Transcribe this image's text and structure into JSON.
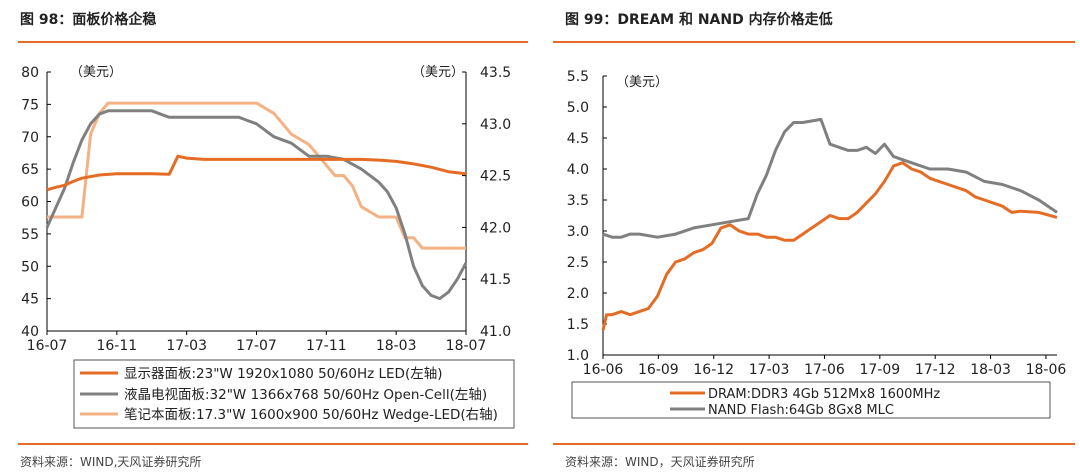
{
  "chart_data": [
    {
      "type": "line",
      "title": "图 98：面板价格企稳",
      "source": "资料来源：WIND,天风证券研究所",
      "y_left_label": "（美元）",
      "y_right_label": "（美元）",
      "ylim_left": [
        40,
        80
      ],
      "ylim_right": [
        41.0,
        43.5
      ],
      "yticks_left": [
        "80",
        "75",
        "70",
        "65",
        "60",
        "55",
        "50",
        "45",
        "40"
      ],
      "yticks_right": [
        "43.5",
        "43.0",
        "42.5",
        "42.0",
        "41.5",
        "41.0"
      ],
      "xticks": [
        "16-07",
        "16-11",
        "17-03",
        "17-07",
        "17-11",
        "18-03",
        "18-07"
      ],
      "xlim": [
        0,
        24
      ],
      "series": [
        {
          "name": "显示器面板:23\"W 1920x1080 50/60Hz LED(左轴)",
          "color": "#E46C24",
          "axis": "left",
          "x": [
            0,
            0.5,
            1,
            1.5,
            2,
            3,
            4,
            5,
            6,
            7,
            7.5,
            8,
            9,
            10,
            12,
            14,
            16,
            18,
            19,
            20,
            21,
            22,
            23,
            24
          ],
          "y": [
            61.8,
            62.2,
            62.5,
            63.1,
            63.6,
            64.1,
            64.3,
            64.3,
            64.3,
            64.2,
            67.0,
            66.7,
            66.5,
            66.5,
            66.5,
            66.5,
            66.5,
            66.5,
            66.4,
            66.2,
            65.8,
            65.3,
            64.6,
            64.3
          ]
        },
        {
          "name": "液晶电视面板:32\"W 1366x768 50/60Hz Open-Cell(左轴)",
          "color": "#808080",
          "axis": "left",
          "x": [
            0,
            0.5,
            1,
            1.5,
            2,
            2.5,
            3,
            3.5,
            4,
            5,
            6,
            7,
            8,
            9,
            10,
            11,
            11.5,
            12,
            12.5,
            13,
            14,
            15,
            16,
            17,
            18,
            18.5,
            19,
            19.5,
            20,
            20.5,
            21,
            21.5,
            22,
            22.5,
            23,
            23.5,
            24
          ],
          "y": [
            56,
            59,
            62,
            66,
            69.5,
            72,
            73.5,
            74,
            74,
            74,
            74,
            73,
            73,
            73,
            73,
            73,
            72.5,
            72,
            71,
            70,
            69,
            67,
            67,
            66.5,
            65,
            64,
            63,
            61.5,
            59,
            55,
            50,
            47,
            45.5,
            45,
            46,
            48,
            50.5
          ]
        },
        {
          "name": "笔记本面板:17.3\"W 1600x900 50/60Hz Wedge-LED(右轴)",
          "color": "#F4B183",
          "axis": "right",
          "x": [
            0,
            1,
            2,
            2.5,
            3,
            3.5,
            4,
            5,
            8,
            12,
            13,
            13.5,
            14,
            15,
            16,
            16.5,
            17,
            17.5,
            18,
            19,
            20,
            20.5,
            21,
            21.5,
            22,
            23,
            24
          ],
          "y": [
            42.1,
            42.1,
            42.1,
            42.9,
            43.1,
            43.2,
            43.2,
            43.2,
            43.2,
            43.2,
            43.1,
            43.0,
            42.9,
            42.8,
            42.6,
            42.5,
            42.5,
            42.4,
            42.2,
            42.1,
            42.1,
            41.9,
            41.9,
            41.8,
            41.8,
            41.8,
            41.8
          ]
        }
      ]
    },
    {
      "type": "line",
      "title": "图 99：DREAM 和 NAND 内存价格走低",
      "source": "资料来源：WIND，天风证券研究所",
      "y_label": "（美元）",
      "ylim": [
        1.0,
        5.5
      ],
      "yticks": [
        "5.5",
        "5.0",
        "4.5",
        "4.0",
        "3.5",
        "3.0",
        "2.5",
        "2.0",
        "1.5",
        "1.0"
      ],
      "xticks": [
        "16-06",
        "16-09",
        "16-12",
        "17-03",
        "17-06",
        "17-09",
        "17-12",
        "18-03",
        "18-06"
      ],
      "xlim": [
        0,
        25
      ],
      "series": [
        {
          "name": "DRAM:DDR3 4Gb 512Mx8 1600MHz",
          "color": "#E46C24",
          "x": [
            0,
            0.2,
            0.5,
            1,
            1.5,
            2,
            2.5,
            3,
            3.5,
            4,
            4.5,
            5,
            5.5,
            6,
            6.5,
            7,
            7.5,
            8,
            8.5,
            9,
            9.5,
            10,
            10.5,
            11,
            11.5,
            12,
            12.5,
            13,
            13.5,
            14,
            14.5,
            15,
            15.5,
            16,
            16.5,
            17,
            17.5,
            18,
            18.5,
            19,
            19.5,
            20,
            20.5,
            21,
            21.5,
            22,
            22.5,
            23,
            24,
            25
          ],
          "y": [
            1.4,
            1.65,
            1.65,
            1.7,
            1.65,
            1.7,
            1.75,
            1.95,
            2.3,
            2.5,
            2.55,
            2.65,
            2.7,
            2.8,
            3.05,
            3.1,
            3.0,
            2.95,
            2.95,
            2.9,
            2.9,
            2.85,
            2.85,
            2.95,
            3.05,
            3.15,
            3.25,
            3.2,
            3.2,
            3.3,
            3.45,
            3.6,
            3.8,
            4.05,
            4.1,
            4.0,
            3.95,
            3.85,
            3.8,
            3.75,
            3.7,
            3.65,
            3.55,
            3.5,
            3.45,
            3.4,
            3.3,
            3.32,
            3.3,
            3.22
          ]
        },
        {
          "name": "NAND Flash:64Gb 8Gx8 MLC",
          "color": "#808080",
          "x": [
            0,
            0.5,
            1,
            1.5,
            2,
            3,
            4,
            5,
            6,
            7,
            8,
            8.5,
            9,
            9.5,
            10,
            10.5,
            11,
            12,
            12.5,
            13,
            13.5,
            14,
            14.5,
            15,
            15.5,
            16,
            16.5,
            17,
            18,
            19,
            20,
            21,
            22,
            23,
            24,
            25
          ],
          "y": [
            2.95,
            2.9,
            2.9,
            2.95,
            2.95,
            2.9,
            2.95,
            3.05,
            3.1,
            3.15,
            3.2,
            3.6,
            3.9,
            4.3,
            4.6,
            4.75,
            4.75,
            4.8,
            4.4,
            4.35,
            4.3,
            4.3,
            4.35,
            4.25,
            4.4,
            4.2,
            4.15,
            4.1,
            4.0,
            4.0,
            3.95,
            3.8,
            3.75,
            3.65,
            3.5,
            3.3
          ]
        }
      ]
    }
  ]
}
